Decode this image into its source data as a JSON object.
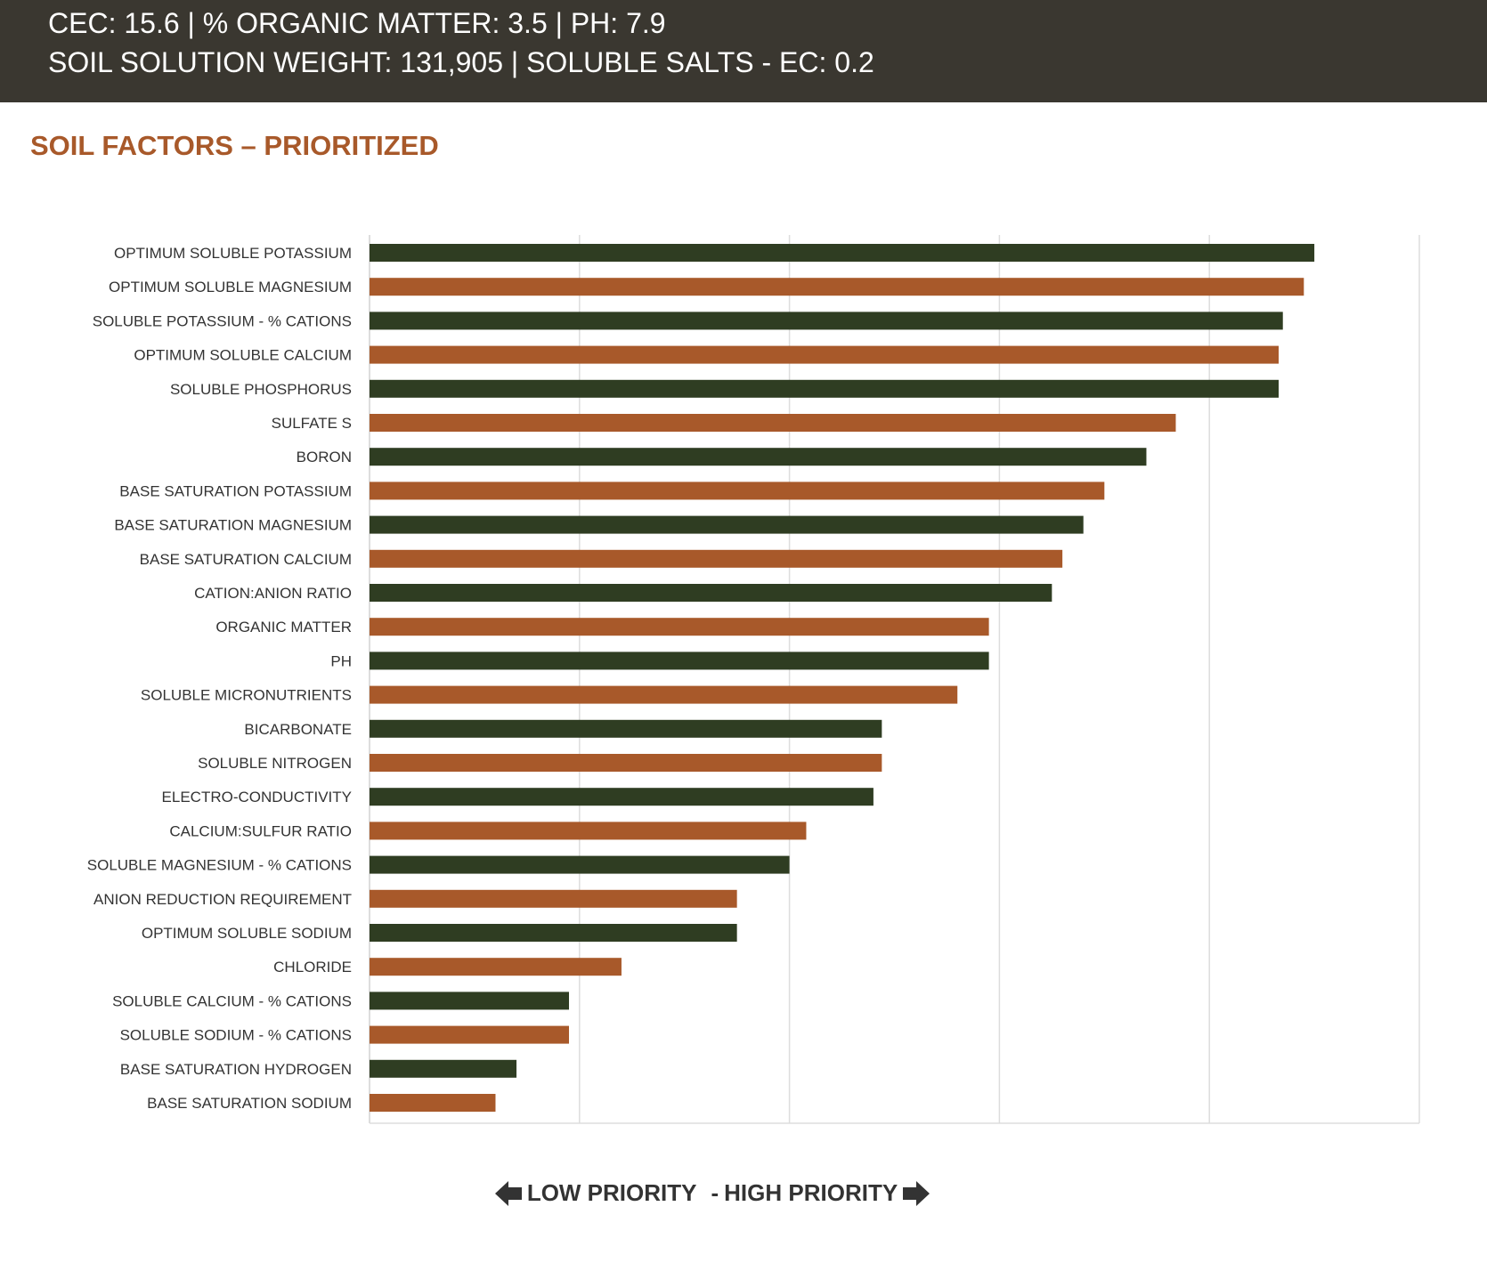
{
  "header": {
    "line1": "CEC: 15.6 | % ORGANIC MATTER: 3.5 | PH: 7.9",
    "line2": "SOIL SOLUTION WEIGHT: 131,905 | SOLUBLE SALTS - EC: 0.2"
  },
  "section_title": "SOIL FACTORS – PRIORITIZED",
  "footer": {
    "low_priority": "LOW PRIORITY",
    "separator": "-",
    "high_priority": "HIGH PRIORITY",
    "left_icon": "arrow-left-icon",
    "right_icon": "arrow-right-icon"
  },
  "colors": {
    "header_bg": "#3a3730",
    "title": "#a8592a",
    "green_bar": "#2f3d22",
    "orange_bar": "#a8592a",
    "grid": "#dddddd"
  },
  "chart_data": {
    "type": "bar",
    "orientation": "horizontal",
    "categories": [
      "OPTIMUM SOLUBLE POTASSIUM",
      "OPTIMUM SOLUBLE MAGNESIUM",
      "SOLUBLE POTASSIUM - % CATIONS",
      "OPTIMUM SOLUBLE CALCIUM",
      "SOLUBLE PHOSPHORUS",
      "SULFATE S",
      "BORON",
      "BASE SATURATION POTASSIUM",
      "BASE SATURATION MAGNESIUM",
      "BASE SATURATION CALCIUM",
      "CATION:ANION RATIO",
      "ORGANIC MATTER",
      "PH",
      "SOLUBLE MICRONUTRIENTS",
      "BICARBONATE",
      "SOLUBLE NITROGEN",
      "ELECTRO-CONDUCTIVITY",
      "CALCIUM:SULFUR RATIO",
      "SOLUBLE MAGNESIUM - % CATIONS",
      "ANION REDUCTION REQUIREMENT",
      "OPTIMUM SOLUBLE SODIUM",
      "CHLORIDE",
      "SOLUBLE CALCIUM - % CATIONS",
      "SOLUBLE SODIUM - % CATIONS",
      "BASE SATURATION HYDROGEN",
      "BASE SATURATION SODIUM"
    ],
    "values": [
      4.5,
      4.45,
      4.35,
      4.33,
      4.33,
      3.84,
      3.7,
      3.5,
      3.4,
      3.3,
      3.25,
      2.95,
      2.95,
      2.8,
      2.44,
      2.44,
      2.4,
      2.08,
      2.0,
      1.75,
      1.75,
      1.2,
      0.95,
      0.95,
      0.7,
      0.6
    ],
    "bar_colors": [
      "green",
      "orange"
    ],
    "xlim": [
      0,
      5
    ],
    "grid_lines": [
      0,
      1,
      2,
      3,
      4,
      5
    ],
    "grid": true,
    "tick_labels_shown": false,
    "title": "",
    "xlabel": "",
    "ylabel": ""
  }
}
